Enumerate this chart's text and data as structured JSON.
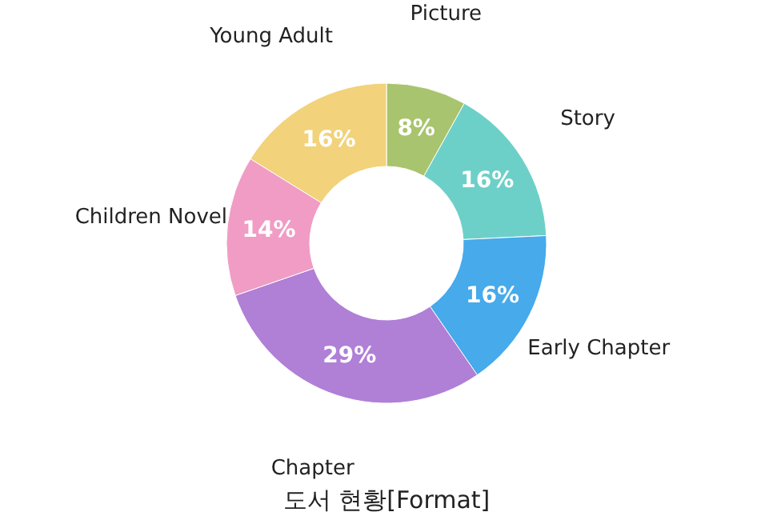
{
  "chart_data": {
    "type": "donut",
    "title": "도서 현황[Format]",
    "categories": [
      "Picture",
      "Story",
      "Early Chapter",
      "Chapter",
      "Children Novel",
      "Young Adult"
    ],
    "values": [
      8,
      16,
      16,
      29,
      14,
      16
    ],
    "colors": [
      "#a8c46e",
      "#6dd0c8",
      "#46aaeb",
      "#b07fd6",
      "#f09cc4",
      "#f2d27a"
    ],
    "value_labels": [
      "8%",
      "16%",
      "16%",
      "29%",
      "14%",
      "16%"
    ],
    "legend": false
  }
}
